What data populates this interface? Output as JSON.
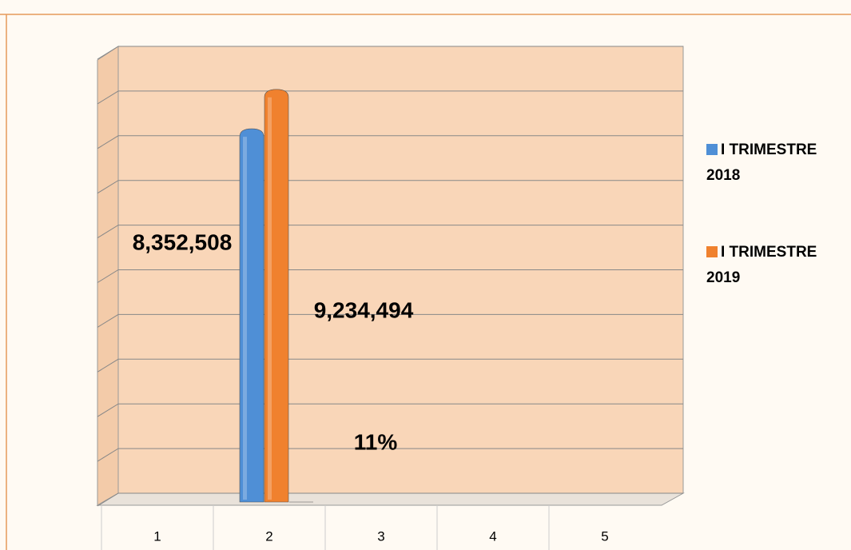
{
  "chart_data": {
    "type": "bar3d",
    "categories": [
      "1",
      "2",
      "3",
      "4",
      "5"
    ],
    "series": [
      {
        "name": "I TRIMESTRE 2018",
        "color": "#4f8fd6",
        "values": [
          null,
          8352508,
          null,
          null,
          null
        ],
        "value_labels": [
          null,
          "8,352,508",
          null,
          null,
          null
        ]
      },
      {
        "color": "#f0812e",
        "values": [
          null,
          9234494,
          null,
          null,
          null
        ],
        "name": "I TRIMESTRE 2019",
        "value_labels": [
          null,
          "9,234,494",
          null,
          null,
          null
        ]
      },
      {
        "color": "#8c8c8c",
        "values": [
          null,
          11,
          null,
          null,
          null
        ],
        "value_labels": [
          null,
          "11%",
          null,
          null,
          null
        ]
      }
    ],
    "ylim": [
      0,
      10000000
    ],
    "yticks": [
      0,
      1000000,
      2000000,
      3000000,
      4000000,
      5000000,
      6000000,
      7000000,
      8000000,
      9000000,
      10000000
    ],
    "ytick_labels": false,
    "grid": true
  }
}
